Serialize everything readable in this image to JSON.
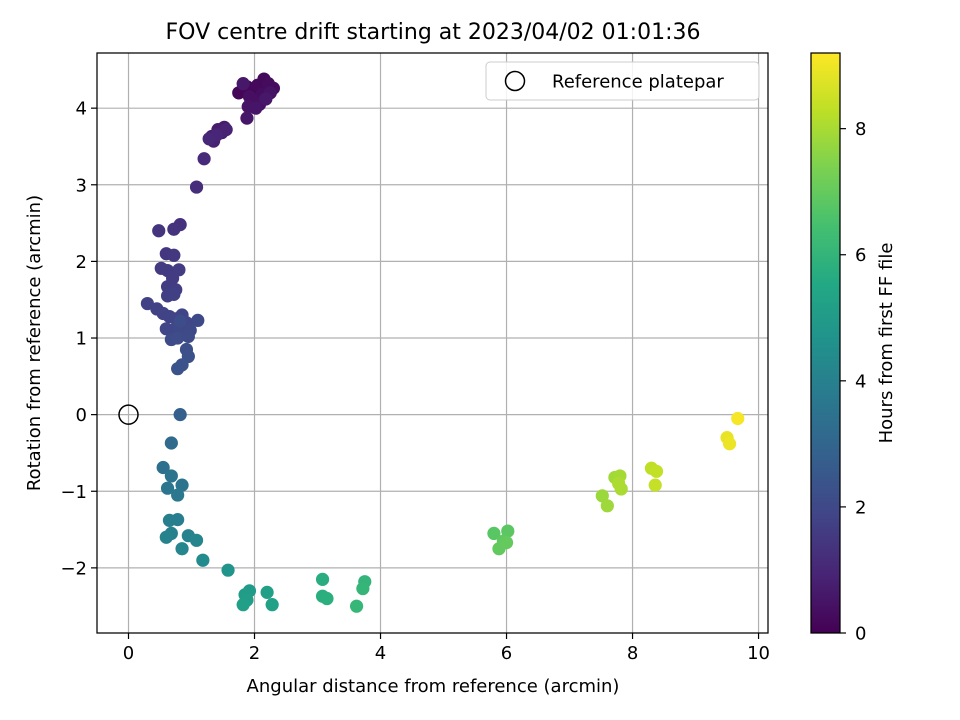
{
  "chart_data": {
    "type": "scatter",
    "title": "FOV centre drift starting at 2023/04/02 01:01:36",
    "xlabel": "Angular distance from reference (arcmin)",
    "ylabel": "Rotation from reference (arcmin)",
    "xlim": [
      -0.5,
      10.15
    ],
    "ylim": [
      -2.85,
      4.72
    ],
    "xticks": [
      0,
      2,
      4,
      6,
      8,
      10
    ],
    "yticks": [
      -2,
      -1,
      0,
      1,
      2,
      3,
      4
    ],
    "xtick_labels": [
      "0",
      "2",
      "4",
      "6",
      "8",
      "10"
    ],
    "ytick_labels": [
      "−2",
      "−1",
      "0",
      "1",
      "2",
      "3",
      "4"
    ],
    "grid": true,
    "legend": {
      "placement": "top-right",
      "entries": [
        "Reference platepar"
      ]
    },
    "reference": {
      "name": "Reference platepar",
      "x": 0,
      "y": 0
    },
    "colorbar": {
      "label": "Hours from first FF file",
      "colormap": "viridis",
      "range": [
        0,
        9.2
      ],
      "ticks": [
        0,
        2,
        4,
        6,
        8
      ],
      "tick_labels": [
        "0",
        "2",
        "4",
        "6",
        "8"
      ]
    },
    "series": [
      {
        "points": [
          {
            "x": 1.88,
            "y": 4.28,
            "h": 0.05
          },
          {
            "x": 1.82,
            "y": 4.22,
            "h": 0.08
          },
          {
            "x": 1.75,
            "y": 4.2,
            "h": 0.12
          },
          {
            "x": 1.95,
            "y": 4.25,
            "h": 0.15
          },
          {
            "x": 2.05,
            "y": 4.3,
            "h": 0.18
          },
          {
            "x": 2.15,
            "y": 4.38,
            "h": 0.22
          },
          {
            "x": 2.22,
            "y": 4.32,
            "h": 0.25
          },
          {
            "x": 2.3,
            "y": 4.26,
            "h": 0.28
          },
          {
            "x": 2.12,
            "y": 4.18,
            "h": 0.32
          },
          {
            "x": 2.0,
            "y": 4.1,
            "h": 0.35
          },
          {
            "x": 1.92,
            "y": 4.15,
            "h": 0.38
          },
          {
            "x": 2.08,
            "y": 4.05,
            "h": 0.42
          },
          {
            "x": 2.25,
            "y": 4.2,
            "h": 0.45
          },
          {
            "x": 1.9,
            "y": 4.02,
            "h": 0.48
          },
          {
            "x": 2.02,
            "y": 4.0,
            "h": 0.52
          },
          {
            "x": 1.88,
            "y": 3.87,
            "h": 0.55
          },
          {
            "x": 1.82,
            "y": 4.32,
            "h": 0.58
          },
          {
            "x": 2.18,
            "y": 4.12,
            "h": 0.6
          },
          {
            "x": 1.52,
            "y": 3.75,
            "h": 0.65
          },
          {
            "x": 1.42,
            "y": 3.72,
            "h": 0.7
          },
          {
            "x": 1.32,
            "y": 3.63,
            "h": 0.75
          },
          {
            "x": 1.48,
            "y": 3.68,
            "h": 0.8
          },
          {
            "x": 1.35,
            "y": 3.57,
            "h": 0.85
          },
          {
            "x": 1.55,
            "y": 3.72,
            "h": 0.9
          },
          {
            "x": 1.4,
            "y": 3.65,
            "h": 0.95
          },
          {
            "x": 1.28,
            "y": 3.6,
            "h": 1.0
          },
          {
            "x": 1.2,
            "y": 3.34,
            "h": 1.1
          },
          {
            "x": 1.08,
            "y": 2.97,
            "h": 1.2
          },
          {
            "x": 0.82,
            "y": 2.48,
            "h": 1.3
          },
          {
            "x": 0.72,
            "y": 2.42,
            "h": 1.35
          },
          {
            "x": 0.48,
            "y": 2.4,
            "h": 1.4
          },
          {
            "x": 0.6,
            "y": 2.1,
            "h": 1.45
          },
          {
            "x": 0.72,
            "y": 2.08,
            "h": 1.5
          },
          {
            "x": 0.52,
            "y": 1.91,
            "h": 1.55
          },
          {
            "x": 0.62,
            "y": 1.88,
            "h": 1.58
          },
          {
            "x": 0.8,
            "y": 1.89,
            "h": 1.6
          },
          {
            "x": 0.7,
            "y": 1.78,
            "h": 1.62
          },
          {
            "x": 0.62,
            "y": 1.67,
            "h": 1.65
          },
          {
            "x": 0.75,
            "y": 1.63,
            "h": 1.68
          },
          {
            "x": 0.62,
            "y": 1.55,
            "h": 1.7
          },
          {
            "x": 0.72,
            "y": 1.57,
            "h": 1.72
          },
          {
            "x": 0.3,
            "y": 1.45,
            "h": 1.75
          },
          {
            "x": 0.45,
            "y": 1.38,
            "h": 1.78
          },
          {
            "x": 0.55,
            "y": 1.32,
            "h": 1.8
          },
          {
            "x": 0.65,
            "y": 1.28,
            "h": 1.82
          },
          {
            "x": 0.75,
            "y": 1.25,
            "h": 1.85
          },
          {
            "x": 0.85,
            "y": 1.3,
            "h": 1.88
          },
          {
            "x": 0.92,
            "y": 1.2,
            "h": 1.9
          },
          {
            "x": 0.6,
            "y": 1.12,
            "h": 1.92
          },
          {
            "x": 0.7,
            "y": 1.1,
            "h": 1.95
          },
          {
            "x": 0.8,
            "y": 1.15,
            "h": 1.98
          },
          {
            "x": 0.88,
            "y": 1.05,
            "h": 2.0
          },
          {
            "x": 0.98,
            "y": 1.1,
            "h": 2.02
          },
          {
            "x": 1.1,
            "y": 1.23,
            "h": 2.05
          },
          {
            "x": 0.68,
            "y": 0.98,
            "h": 2.08
          },
          {
            "x": 0.78,
            "y": 1.0,
            "h": 2.1
          },
          {
            "x": 0.95,
            "y": 1.02,
            "h": 2.12
          },
          {
            "x": 0.82,
            "y": 1.22,
            "h": 2.15
          },
          {
            "x": 0.92,
            "y": 0.85,
            "h": 2.2
          },
          {
            "x": 0.95,
            "y": 0.76,
            "h": 2.25
          },
          {
            "x": 0.85,
            "y": 0.65,
            "h": 2.3
          },
          {
            "x": 0.78,
            "y": 0.6,
            "h": 2.35
          },
          {
            "x": 0.82,
            "y": 0.0,
            "h": 2.8
          },
          {
            "x": 0.68,
            "y": -0.37,
            "h": 3.2
          },
          {
            "x": 0.55,
            "y": -0.69,
            "h": 3.4
          },
          {
            "x": 0.68,
            "y": -0.8,
            "h": 3.5
          },
          {
            "x": 0.85,
            "y": -0.92,
            "h": 3.55
          },
          {
            "x": 0.62,
            "y": -0.96,
            "h": 3.6
          },
          {
            "x": 0.78,
            "y": -1.05,
            "h": 3.65
          },
          {
            "x": 0.78,
            "y": -1.37,
            "h": 3.9
          },
          {
            "x": 0.65,
            "y": -1.38,
            "h": 3.95
          },
          {
            "x": 0.68,
            "y": -1.55,
            "h": 4.0
          },
          {
            "x": 0.6,
            "y": -1.6,
            "h": 4.05
          },
          {
            "x": 0.95,
            "y": -1.58,
            "h": 4.1
          },
          {
            "x": 1.08,
            "y": -1.64,
            "h": 4.15
          },
          {
            "x": 0.85,
            "y": -1.75,
            "h": 4.2
          },
          {
            "x": 1.18,
            "y": -1.9,
            "h": 4.35
          },
          {
            "x": 1.58,
            "y": -2.03,
            "h": 4.7
          },
          {
            "x": 1.92,
            "y": -2.3,
            "h": 5.0
          },
          {
            "x": 1.85,
            "y": -2.35,
            "h": 5.05
          },
          {
            "x": 1.88,
            "y": -2.42,
            "h": 5.1
          },
          {
            "x": 1.82,
            "y": -2.48,
            "h": 5.15
          },
          {
            "x": 2.2,
            "y": -2.32,
            "h": 5.2
          },
          {
            "x": 2.28,
            "y": -2.48,
            "h": 5.25
          },
          {
            "x": 3.08,
            "y": -2.15,
            "h": 5.7
          },
          {
            "x": 3.08,
            "y": -2.37,
            "h": 5.75
          },
          {
            "x": 3.15,
            "y": -2.4,
            "h": 5.8
          },
          {
            "x": 3.75,
            "y": -2.18,
            "h": 6.0
          },
          {
            "x": 3.72,
            "y": -2.27,
            "h": 6.05
          },
          {
            "x": 3.62,
            "y": -2.5,
            "h": 6.1
          },
          {
            "x": 5.8,
            "y": -1.55,
            "h": 6.8
          },
          {
            "x": 6.02,
            "y": -1.52,
            "h": 6.85
          },
          {
            "x": 5.95,
            "y": -1.65,
            "h": 6.9
          },
          {
            "x": 5.88,
            "y": -1.75,
            "h": 6.95
          },
          {
            "x": 6.0,
            "y": -1.67,
            "h": 7.0
          },
          {
            "x": 7.52,
            "y": -1.06,
            "h": 7.8
          },
          {
            "x": 7.6,
            "y": -1.19,
            "h": 7.85
          },
          {
            "x": 7.72,
            "y": -0.82,
            "h": 7.9
          },
          {
            "x": 7.8,
            "y": -0.8,
            "h": 7.95
          },
          {
            "x": 7.82,
            "y": -0.97,
            "h": 8.0
          },
          {
            "x": 7.78,
            "y": -0.9,
            "h": 8.05
          },
          {
            "x": 8.3,
            "y": -0.7,
            "h": 8.3
          },
          {
            "x": 8.38,
            "y": -0.74,
            "h": 8.35
          },
          {
            "x": 8.36,
            "y": -0.92,
            "h": 8.4
          },
          {
            "x": 9.5,
            "y": -0.3,
            "h": 8.9
          },
          {
            "x": 9.54,
            "y": -0.38,
            "h": 8.95
          },
          {
            "x": 9.67,
            "y": -0.05,
            "h": 9.1
          }
        ]
      }
    ]
  }
}
